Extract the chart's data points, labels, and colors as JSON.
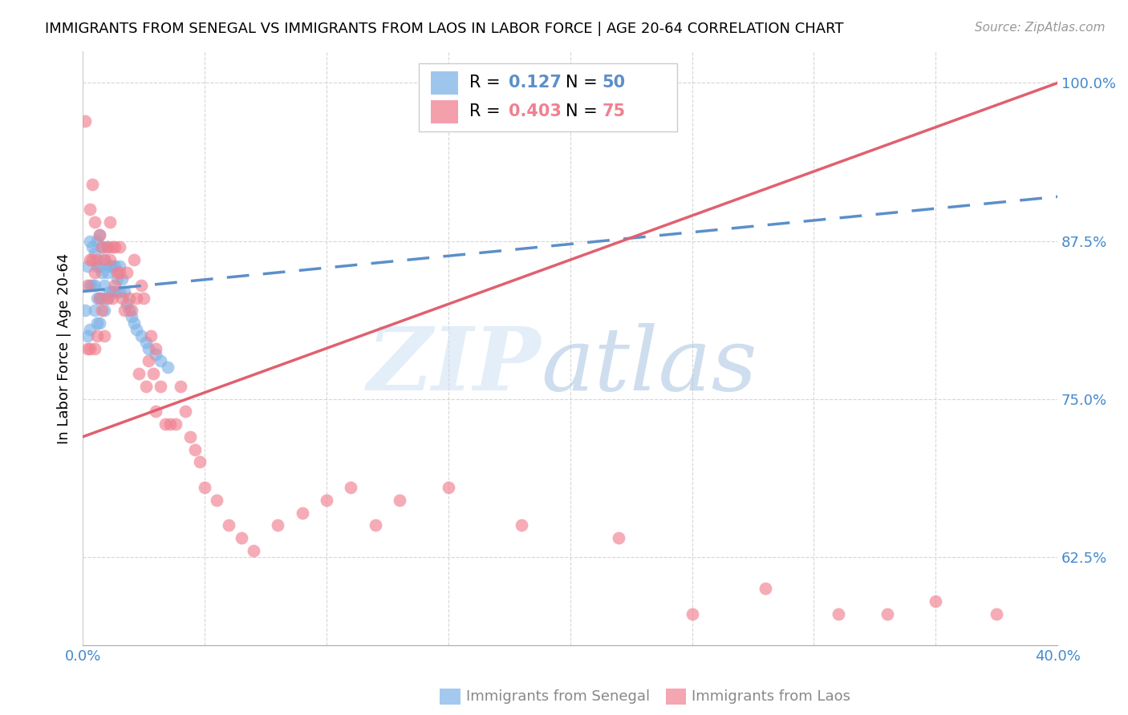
{
  "title": "IMMIGRANTS FROM SENEGAL VS IMMIGRANTS FROM LAOS IN LABOR FORCE | AGE 20-64 CORRELATION CHART",
  "source": "Source: ZipAtlas.com",
  "ylabel": "In Labor Force | Age 20-64",
  "xlim": [
    0.0,
    0.4
  ],
  "ylim": [
    0.555,
    1.025
  ],
  "yticks": [
    0.625,
    0.75,
    0.875,
    1.0
  ],
  "ytick_labels": [
    "62.5%",
    "75.0%",
    "87.5%",
    "100.0%"
  ],
  "xticks": [
    0.0,
    0.05,
    0.1,
    0.15,
    0.2,
    0.25,
    0.3,
    0.35,
    0.4
  ],
  "xtick_labels": [
    "0.0%",
    "",
    "",
    "",
    "",
    "",
    "",
    "",
    "40.0%"
  ],
  "legend_r_senegal": "0.127",
  "legend_n_senegal": "50",
  "legend_r_laos": "0.403",
  "legend_n_laos": "75",
  "color_senegal": "#7eb3e8",
  "color_laos": "#f08090",
  "trendline_color_senegal": "#5b8fc9",
  "trendline_color_laos": "#e06070",
  "tick_color": "#4488cc",
  "senegal_x": [
    0.001,
    0.002,
    0.002,
    0.003,
    0.003,
    0.003,
    0.004,
    0.004,
    0.005,
    0.005,
    0.005,
    0.006,
    0.006,
    0.006,
    0.006,
    0.007,
    0.007,
    0.007,
    0.007,
    0.008,
    0.008,
    0.008,
    0.009,
    0.009,
    0.009,
    0.01,
    0.01,
    0.01,
    0.011,
    0.011,
    0.012,
    0.012,
    0.013,
    0.013,
    0.014,
    0.015,
    0.015,
    0.016,
    0.017,
    0.018,
    0.019,
    0.02,
    0.021,
    0.022,
    0.024,
    0.026,
    0.027,
    0.03,
    0.032,
    0.035
  ],
  "senegal_y": [
    0.82,
    0.8,
    0.855,
    0.875,
    0.84,
    0.805,
    0.87,
    0.84,
    0.865,
    0.84,
    0.82,
    0.875,
    0.855,
    0.83,
    0.81,
    0.88,
    0.855,
    0.83,
    0.81,
    0.87,
    0.85,
    0.83,
    0.86,
    0.84,
    0.82,
    0.87,
    0.85,
    0.83,
    0.855,
    0.835,
    0.855,
    0.835,
    0.855,
    0.835,
    0.845,
    0.855,
    0.835,
    0.845,
    0.835,
    0.825,
    0.82,
    0.815,
    0.81,
    0.805,
    0.8,
    0.795,
    0.79,
    0.785,
    0.78,
    0.775
  ],
  "laos_x": [
    0.001,
    0.002,
    0.002,
    0.003,
    0.003,
    0.003,
    0.004,
    0.004,
    0.005,
    0.005,
    0.005,
    0.006,
    0.006,
    0.007,
    0.007,
    0.008,
    0.008,
    0.009,
    0.009,
    0.01,
    0.01,
    0.011,
    0.011,
    0.012,
    0.012,
    0.013,
    0.013,
    0.014,
    0.015,
    0.015,
    0.016,
    0.017,
    0.018,
    0.019,
    0.02,
    0.021,
    0.022,
    0.023,
    0.024,
    0.025,
    0.026,
    0.027,
    0.028,
    0.029,
    0.03,
    0.03,
    0.032,
    0.034,
    0.036,
    0.038,
    0.04,
    0.042,
    0.044,
    0.046,
    0.048,
    0.05,
    0.055,
    0.06,
    0.065,
    0.07,
    0.08,
    0.09,
    0.1,
    0.11,
    0.12,
    0.13,
    0.15,
    0.18,
    0.22,
    0.25,
    0.28,
    0.31,
    0.33,
    0.35,
    0.375
  ],
  "laos_y": [
    0.97,
    0.84,
    0.79,
    0.9,
    0.86,
    0.79,
    0.92,
    0.86,
    0.89,
    0.85,
    0.79,
    0.86,
    0.8,
    0.88,
    0.83,
    0.87,
    0.82,
    0.86,
    0.8,
    0.87,
    0.83,
    0.89,
    0.86,
    0.87,
    0.83,
    0.87,
    0.84,
    0.85,
    0.87,
    0.85,
    0.83,
    0.82,
    0.85,
    0.83,
    0.82,
    0.86,
    0.83,
    0.77,
    0.84,
    0.83,
    0.76,
    0.78,
    0.8,
    0.77,
    0.79,
    0.74,
    0.76,
    0.73,
    0.73,
    0.73,
    0.76,
    0.74,
    0.72,
    0.71,
    0.7,
    0.68,
    0.67,
    0.65,
    0.64,
    0.63,
    0.65,
    0.66,
    0.67,
    0.68,
    0.65,
    0.67,
    0.68,
    0.65,
    0.64,
    0.58,
    0.6,
    0.58,
    0.58,
    0.59,
    0.58
  ]
}
